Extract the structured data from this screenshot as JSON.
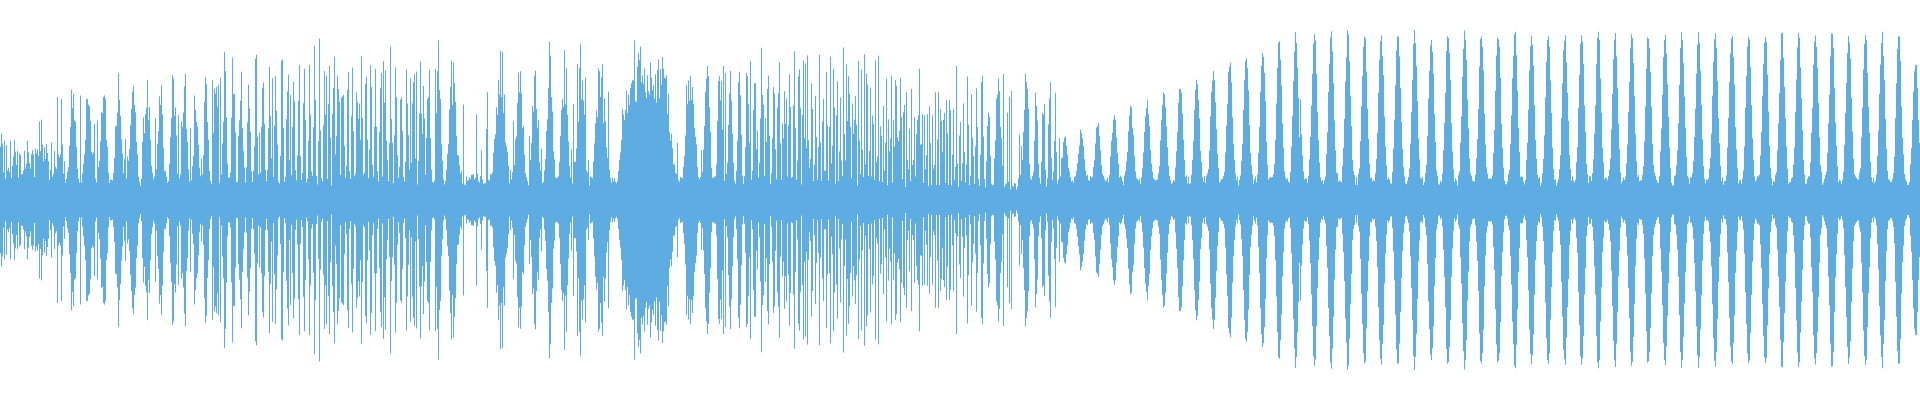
{
  "waveform": {
    "color": "#5dade2",
    "background": "#ffffff",
    "icon": "audio-waveform"
  }
}
